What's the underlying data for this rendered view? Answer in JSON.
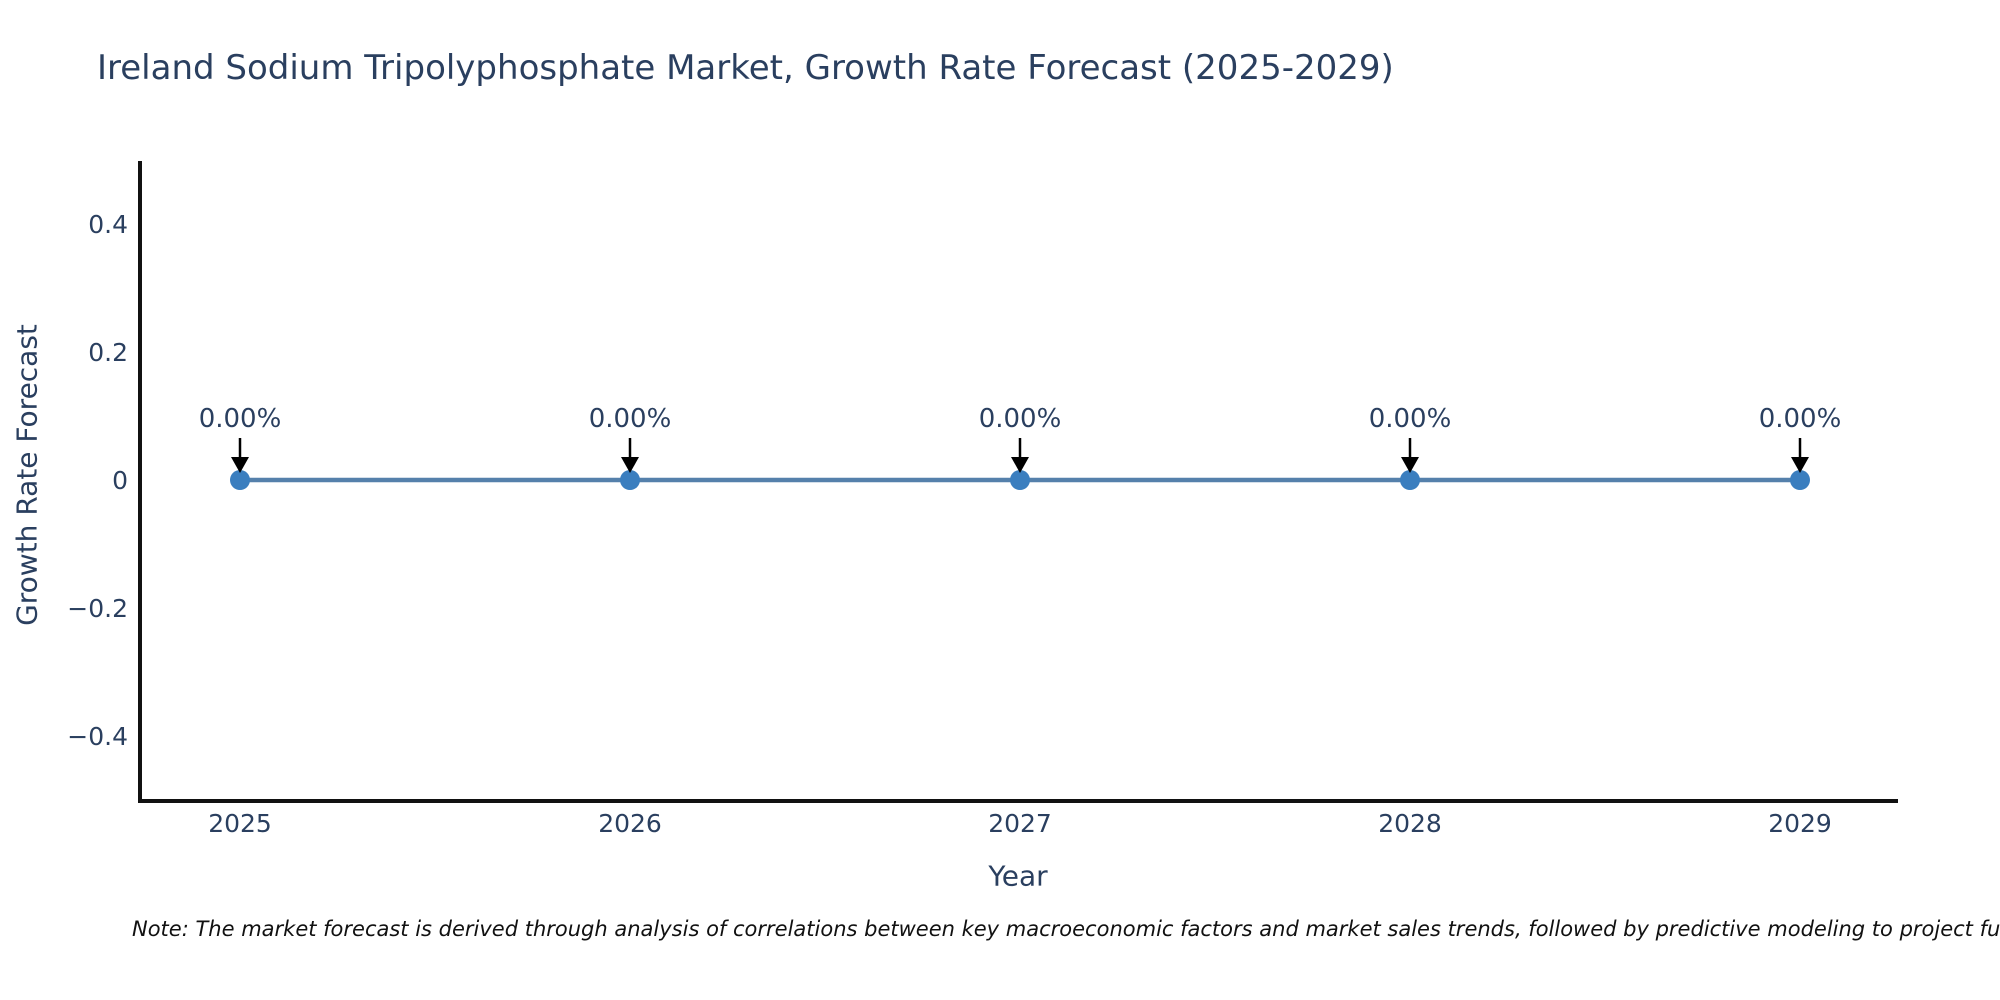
{
  "header": {
    "title": "Ireland Sodium Tripolyphosphate Market, Growth Rate Forecast (2025-2029)"
  },
  "axes": {
    "x_title": "Year",
    "y_title": "Growth Rate Forecast"
  },
  "footer": {
    "note": "Note: The market forecast is derived through analysis of correlations between key macroeconomic factors and market sales trends, followed by predictive modeling to project future sa"
  },
  "chart_data": {
    "type": "line",
    "title": "Ireland Sodium Tripolyphosphate Market, Growth Rate Forecast (2025-2029)",
    "xlabel": "Year",
    "ylabel": "Growth Rate Forecast",
    "categories": [
      "2025",
      "2026",
      "2027",
      "2028",
      "2029"
    ],
    "series": [
      {
        "name": "Growth Rate Forecast",
        "values": [
          0,
          0,
          0,
          0,
          0
        ]
      }
    ],
    "point_labels": [
      "0.00%",
      "0.00%",
      "0.00%",
      "0.00%",
      "0.00%"
    ],
    "yticks": {
      "labels": [
        "0.4",
        "0.2",
        "0",
        "−0.2",
        "−0.4"
      ],
      "values": [
        0.4,
        0.2,
        0,
        -0.2,
        -0.4
      ]
    },
    "ylim": [
      -0.5,
      0.5
    ],
    "grid": false,
    "legend": false,
    "colors": {
      "line": "#5580ab",
      "marker": "#3a7ebf",
      "axis": "#111111",
      "text": "#2a3f5f",
      "arrow": "#000000",
      "note_text": "#111111"
    }
  }
}
